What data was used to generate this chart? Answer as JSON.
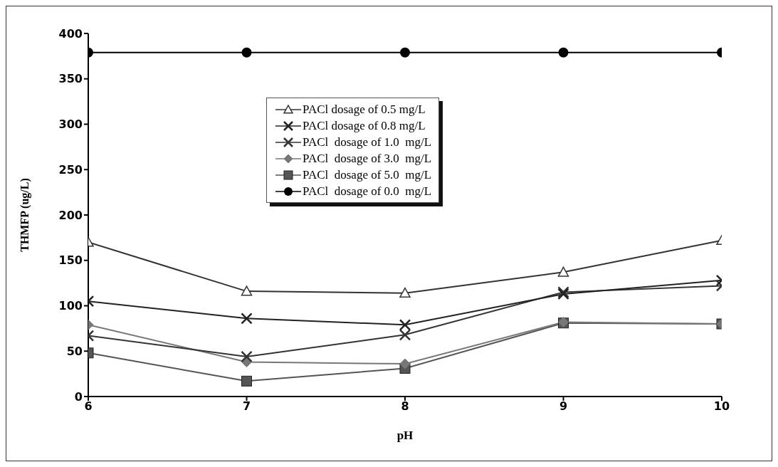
{
  "chart_data": {
    "type": "line",
    "xlabel": "pH",
    "ylabel": "THMFP (ug/L)",
    "x": [
      6,
      7,
      8,
      9,
      10
    ],
    "xlim": [
      6,
      10
    ],
    "xticks": [
      6,
      7,
      8,
      9,
      10
    ],
    "ylim": [
      0,
      400
    ],
    "yticks": [
      0,
      50,
      100,
      150,
      200,
      250,
      300,
      350,
      400
    ],
    "grid": false,
    "legend": "top",
    "series": [
      {
        "name": "PACl dosage of 0.5 mg/L",
        "color": "#333333",
        "marker": "triangle",
        "values": [
          170,
          116,
          114,
          137,
          172
        ]
      },
      {
        "name": "PACl dosage of 0.8 mg/L",
        "color": "#222222",
        "marker": "cross",
        "values": [
          105,
          86,
          79,
          113,
          128
        ]
      },
      {
        "name": "PACl  dosage of 1.0  mg/L",
        "color": "#333333",
        "marker": "cross",
        "values": [
          67,
          44,
          68,
          115,
          122
        ]
      },
      {
        "name": "PACl  dosage of 3.0  mg/L",
        "color": "#777777",
        "marker": "diamond",
        "values": [
          79,
          38,
          36,
          82,
          80
        ]
      },
      {
        "name": "PACl  dosage of 5.0  mg/L",
        "color": "#555555",
        "marker": "square",
        "values": [
          48,
          17,
          31,
          81,
          80
        ]
      },
      {
        "name": "PACl  dosage of 0.0  mg/L",
        "color": "#000000",
        "marker": "circle",
        "values": [
          379,
          379,
          379,
          379,
          379
        ]
      }
    ]
  }
}
